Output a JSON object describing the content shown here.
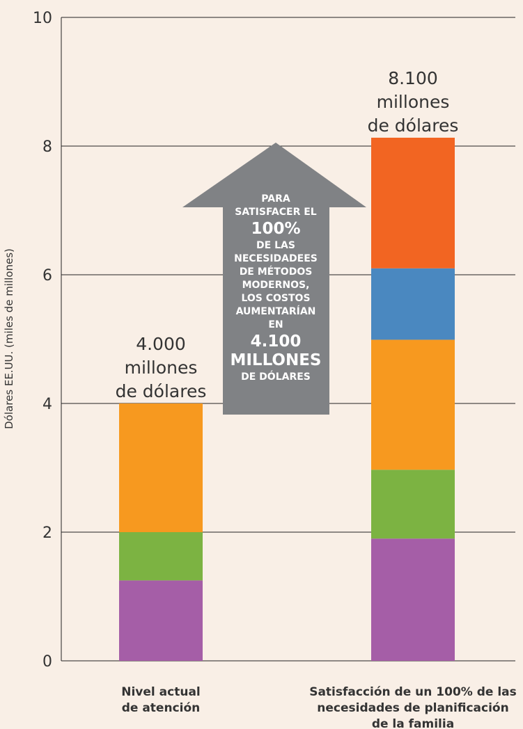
{
  "chart_data": {
    "type": "stacked_bar",
    "y_label": "Dólares EE.UU. (miles de millones)",
    "categories": [
      "Nivel actual\nde atención",
      "Satisfacción de un 100% de las\nnecesidades  de planificación\nde la familia"
    ],
    "series": [
      {
        "color": "#a55ea7",
        "values": [
          1.25,
          1.9
        ]
      },
      {
        "color": "#7cb342",
        "values": [
          0.75,
          1.07
        ]
      },
      {
        "color": "#f7991f",
        "values": [
          2.0,
          2.02
        ]
      },
      {
        "color": "#4a88c0",
        "values": [
          null,
          1.11
        ]
      },
      {
        "color": "#f26522",
        "values": [
          null,
          2.03
        ]
      }
    ],
    "annotations": [
      "4.000\nmillones\nde dólares",
      "8.100\nmillones\nde dólares"
    ],
    "arrow_text": "PARA\nSATISFACER EL\n100%\nDE LAS\nNECESIDADEES\nDE MÉTODOS\nMODERNOS,\nLOS COSTOS\nAUMENTARÍAN\nEN\n4.100\nMILLONES\nDE DÓLARES",
    "ylim": [
      0,
      10
    ],
    "yticks": [
      0,
      2,
      4,
      6,
      8,
      10
    ],
    "grid": true
  }
}
